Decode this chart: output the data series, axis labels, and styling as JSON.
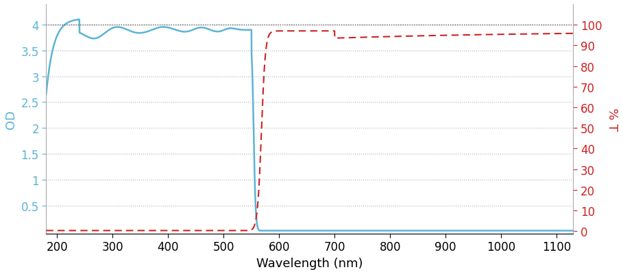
{
  "xlabel": "Wavelength (nm)",
  "ylabel_left": "OD",
  "ylabel_right": "% T",
  "xlim": [
    180,
    1130
  ],
  "ylim_left": [
    -0.05,
    4.4
  ],
  "ylim_right": [
    -1.25,
    110
  ],
  "yticks_left": [
    0.5,
    1,
    1.5,
    2,
    2.5,
    3,
    3.5,
    4
  ],
  "yticks_right": [
    0,
    10,
    20,
    30,
    40,
    50,
    60,
    70,
    80,
    90,
    100
  ],
  "xticks": [
    200,
    300,
    400,
    500,
    600,
    700,
    800,
    900,
    1000,
    1100
  ],
  "grid_color": "#aaaaaa",
  "blue_color": "#5ab4d6",
  "red_color": "#cc2222",
  "bg_color": "#ffffff",
  "xlabel_fontsize": 13,
  "ylabel_fontsize": 13,
  "tick_fontsize": 12
}
